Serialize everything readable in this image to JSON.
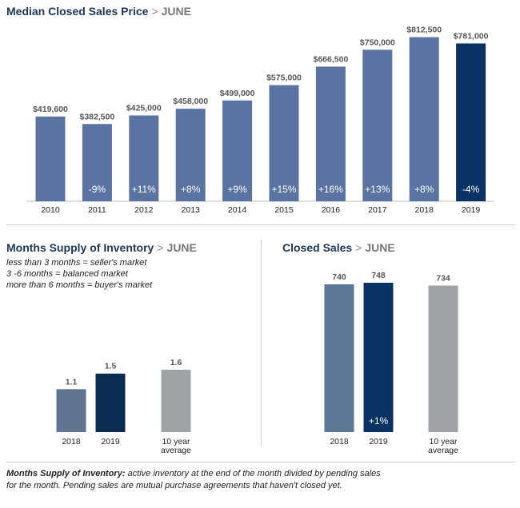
{
  "colors": {
    "bar": "#5a73a3",
    "highlight": "#0a3365",
    "supply_2018": "#5f7591",
    "supply_2019": "#0c2b50",
    "sales_2018": "#5d7797",
    "sales_2019": "#0a3365",
    "average": "#9fa3a6",
    "title": "#1d3557"
  },
  "top_title": {
    "main": "Median Closed Sales Price",
    "sep": ">",
    "month": "JUNE"
  },
  "supply_title": {
    "main": "Months Supply of Inventory",
    "sep": ">",
    "month": "JUNE"
  },
  "sales_title": {
    "main": "Closed Sales",
    "sep": ">",
    "month": "JUNE"
  },
  "supply_notes": [
    "less than 3 months = seller's market",
    "3 -6 months = balanced market",
    "more than 6 months = buyer's market"
  ],
  "footnote": {
    "bold": "Months Supply of Inventory:",
    "line1": " active inventory at the end of the month divided by pending sales",
    "line2": "for the month. Pending sales are mutual purchase agreements that haven't closed yet."
  },
  "chart_data": [
    {
      "type": "bar",
      "title": "Median Closed Sales Price > JUNE",
      "categories": [
        "2010",
        "2011",
        "2012",
        "2013",
        "2014",
        "2015",
        "2016",
        "2017",
        "2018",
        "2019"
      ],
      "values": [
        419600,
        382500,
        425000,
        458000,
        499000,
        575000,
        666500,
        750000,
        812500,
        781000
      ],
      "value_labels": [
        "$419,600",
        "$382,500",
        "$425,000",
        "$458,000",
        "$499,000",
        "$575,000",
        "$666,500",
        "$750,000",
        "$812,500",
        "$781,000"
      ],
      "change_labels": [
        "",
        "-9%",
        "+11%",
        "+8%",
        "+9%",
        "+15%",
        "+16%",
        "+13%",
        "+8%",
        "-4%"
      ],
      "highlight_index": 9,
      "ylim": [
        0,
        850000
      ],
      "grid": false
    },
    {
      "type": "bar",
      "title": "Months Supply of Inventory > JUNE",
      "categories": [
        "2018",
        "2019",
        "10 year average"
      ],
      "category_lines": [
        [
          "2018"
        ],
        [
          "2019"
        ],
        [
          "10 year",
          "average"
        ]
      ],
      "values": [
        1.1,
        1.5,
        1.6
      ],
      "value_labels": [
        "1.1",
        "1.5",
        "1.6"
      ],
      "ylim": [
        0,
        4.3
      ],
      "grid": false
    },
    {
      "type": "bar",
      "title": "Closed Sales > JUNE",
      "categories": [
        "2018",
        "2019",
        "10 year average"
      ],
      "category_lines": [
        [
          "2018"
        ],
        [
          "2019"
        ],
        [
          "10 year",
          "average"
        ]
      ],
      "values": [
        740,
        748,
        734
      ],
      "value_labels": [
        "740",
        "748",
        "734"
      ],
      "change_labels": [
        "",
        "+1%",
        ""
      ],
      "ylim": [
        0,
        840
      ],
      "grid": false
    }
  ]
}
